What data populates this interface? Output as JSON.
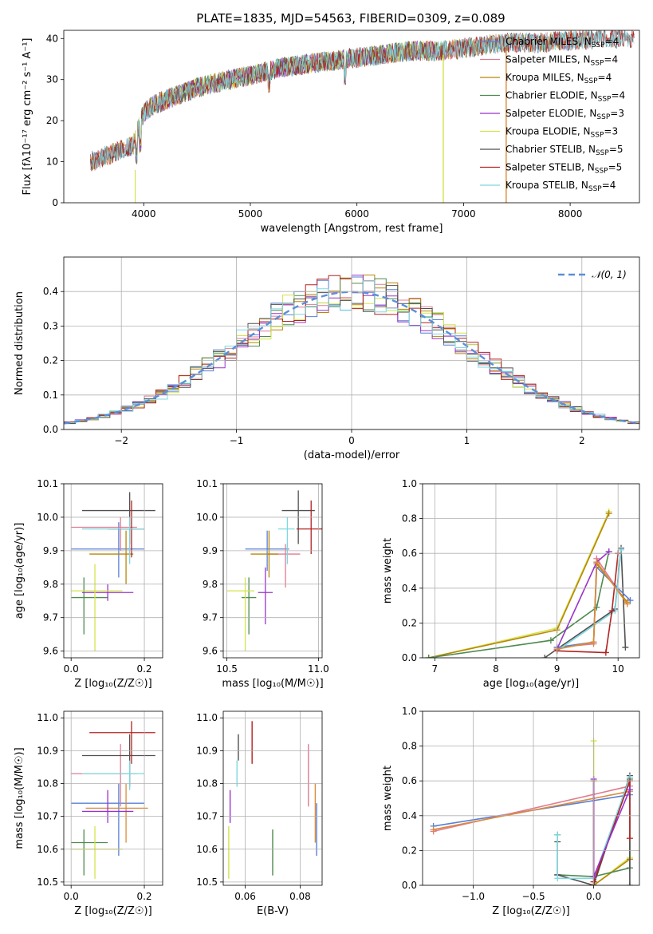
{
  "figure_title": "PLATE=1835, MJD=54563, FIBERID=0309, z=0.089",
  "chart_data": [
    {
      "id": "spectrum",
      "type": "line",
      "title": "PLATE=1835, MJD=54563, FIBERID=0309, z=0.089",
      "xlabel": "wavelength [Angstrom, rest frame]",
      "ylabel": "Flux [fλ10⁻¹⁷ erg cm⁻² s⁻¹ A⁻¹]",
      "xlim": [
        3250,
        8650
      ],
      "ylim": [
        0,
        42
      ],
      "xticks": [
        4000,
        5000,
        6000,
        7000,
        8000
      ],
      "yticks": [
        0,
        10,
        20,
        30,
        40
      ],
      "grid": false,
      "legend_loc": "top-right",
      "continuum": {
        "x": [
          3500,
          3700,
          3800,
          3900,
          3950,
          4000,
          4100,
          4300,
          4500,
          4800,
          5000,
          5300,
          5600,
          5900,
          6200,
          6500,
          6800,
          7100,
          7400,
          7700,
          8000,
          8300,
          8600
        ],
        "y": [
          10,
          12,
          13,
          14,
          18,
          22,
          24,
          26,
          28,
          30,
          31,
          33,
          34,
          35,
          36,
          37,
          37,
          38,
          39,
          39,
          39.5,
          40,
          40
        ]
      },
      "series": [
        {
          "name": "Chabrier MILES, N_SSP=4",
          "color": "#5a7fd6",
          "range": [
            3500,
            8150
          ]
        },
        {
          "name": "Salpeter MILES, N_SSP=4",
          "color": "#e07b91",
          "range": [
            3500,
            8150
          ]
        },
        {
          "name": "Kroupa MILES, N_SSP=4",
          "color": "#b8860b",
          "range": [
            3500,
            8150
          ]
        },
        {
          "name": "Chabrier ELODIE, N_SSP=4",
          "color": "#4f8a4f",
          "range": [
            3920,
            6800
          ]
        },
        {
          "name": "Salpeter ELODIE, N_SSP=3",
          "color": "#9932cc",
          "range": [
            3920,
            6800
          ]
        },
        {
          "name": "Kroupa ELODIE, N_SSP=3",
          "color": "#d4e34a",
          "range": [
            3920,
            6800
          ]
        },
        {
          "name": "Chabrier STELIB, N_SSP=5",
          "color": "#505050",
          "range": [
            3500,
            8600
          ]
        },
        {
          "name": "Salpeter STELIB, N_SSP=5",
          "color": "#b22222",
          "range": [
            3500,
            8600
          ]
        },
        {
          "name": "Kroupa STELIB, N_SSP=4",
          "color": "#7fd8e0",
          "range": [
            3500,
            8600
          ]
        }
      ],
      "legend": [
        {
          "model": "Chabrier MILES",
          "n": "4",
          "color": "#5a7fd6"
        },
        {
          "model": "Salpeter MILES",
          "n": "4",
          "color": "#e07b91"
        },
        {
          "model": "Kroupa MILES",
          "n": "4",
          "color": "#b8860b"
        },
        {
          "model": "Chabrier ELODIE",
          "n": "4",
          "color": "#4f8a4f"
        },
        {
          "model": "Salpeter ELODIE",
          "n": "3",
          "color": "#9932cc"
        },
        {
          "model": "Kroupa ELODIE",
          "n": "3",
          "color": "#d4e34a"
        },
        {
          "model": "Chabrier STELIB",
          "n": "5",
          "color": "#505050"
        },
        {
          "model": "Salpeter STELIB",
          "n": "5",
          "color": "#b22222"
        },
        {
          "model": "Kroupa STELIB",
          "n": "4",
          "color": "#7fd8e0"
        }
      ]
    },
    {
      "id": "residuals",
      "type": "line",
      "xlabel": "(data-model)/error",
      "ylabel": "Normed distribution",
      "xlim": [
        -2.5,
        2.5
      ],
      "ylim": [
        0,
        0.5
      ],
      "xticks": [
        -2,
        -1,
        0,
        1,
        2
      ],
      "xtick_labels": [
        "−2",
        "−1",
        "0",
        "1",
        "2"
      ],
      "yticks": [
        0.0,
        0.1,
        0.2,
        0.3,
        0.4
      ],
      "ytick_labels": [
        "0.0",
        "0.1",
        "0.2",
        "0.3",
        "0.4"
      ],
      "grid": true,
      "legend_loc": "top-right",
      "gaussian_label": "𝒩(0, 1)",
      "gaussian_color": "#5b8fd9",
      "bin_width": 0.1,
      "hist_colors": [
        "#5a7fd6",
        "#e07b91",
        "#b8860b",
        "#4f8a4f",
        "#9932cc",
        "#d4e34a",
        "#505050",
        "#b22222",
        "#7fd8e0"
      ]
    },
    {
      "id": "age-vs-z",
      "type": "scatter",
      "xlabel": "Z [log₁₀(Z/Z☉)]",
      "ylabel": "age  [log₁₀(age/yr)]",
      "xlim": [
        -0.02,
        0.25
      ],
      "ylim": [
        9.58,
        10.1
      ],
      "xticks": [
        0.0,
        0.2
      ],
      "xtick_labels": [
        "0.0",
        "0.2"
      ],
      "yticks": [
        9.6,
        9.7,
        9.8,
        9.9,
        10.0,
        10.1
      ],
      "ytick_labels": [
        "9.6",
        "9.7",
        "9.8",
        "9.9",
        "10.0",
        "10.1"
      ],
      "grid": true,
      "points": [
        {
          "color": "#5a7fd6",
          "x": 0.13,
          "xlo": 0.0,
          "xhi": 0.2,
          "y": 9.905,
          "ylo": 9.82,
          "yhi": 9.985
        },
        {
          "color": "#e07b91",
          "x": 0.135,
          "xlo": 0.0,
          "xhi": 0.18,
          "y": 9.97,
          "ylo": 9.9,
          "yhi": 10.0
        },
        {
          "color": "#b8860b",
          "x": 0.15,
          "xlo": 0.05,
          "xhi": 0.17,
          "y": 9.89,
          "ylo": 9.8,
          "yhi": 9.96
        },
        {
          "color": "#4f8a4f",
          "x": 0.035,
          "xlo": 0.0,
          "xhi": 0.1,
          "y": 9.76,
          "ylo": 9.65,
          "yhi": 9.82
        },
        {
          "color": "#9932cc",
          "x": 0.1,
          "xlo": 0.03,
          "xhi": 0.17,
          "y": 9.775,
          "ylo": 9.75,
          "yhi": 9.8
        },
        {
          "color": "#d4e34a",
          "x": 0.065,
          "xlo": 0.0,
          "xhi": 0.14,
          "y": 9.78,
          "ylo": 9.6,
          "yhi": 9.86
        },
        {
          "color": "#505050",
          "x": 0.16,
          "xlo": 0.03,
          "xhi": 0.23,
          "y": 10.02,
          "ylo": 9.92,
          "yhi": 10.075
        },
        {
          "color": "#b22222",
          "x": 0.165,
          "xlo": 0.1,
          "xhi": 0.2,
          "y": 9.965,
          "ylo": 9.88,
          "yhi": 10.05
        },
        {
          "color": "#7fd8e0",
          "x": 0.16,
          "xlo": 0.03,
          "xhi": 0.2,
          "y": 9.965,
          "ylo": 9.86,
          "yhi": 10.0
        }
      ]
    },
    {
      "id": "age-vs-mass",
      "type": "scatter",
      "xlabel": "mass [log₁₀(M/M☉)]",
      "ylabel": "",
      "xlim": [
        10.48,
        11.02
      ],
      "ylim": [
        9.58,
        10.1
      ],
      "xticks": [
        10.5,
        11.0
      ],
      "xtick_labels": [
        "10.5",
        "11.0"
      ],
      "yticks": [
        9.6,
        9.7,
        9.8,
        9.9,
        10.0,
        10.1
      ],
      "ytick_labels": [
        "9.6",
        "9.7",
        "9.8",
        "9.9",
        "10.0",
        "10.1"
      ],
      "grid": true,
      "points": [
        {
          "color": "#5a7fd6",
          "x": 10.72,
          "xlo": 10.6,
          "xhi": 10.84,
          "y": 9.905,
          "ylo": 9.84,
          "yhi": 9.96
        },
        {
          "color": "#e07b91",
          "x": 10.82,
          "xlo": 10.72,
          "xhi": 10.9,
          "y": 9.89,
          "ylo": 9.79,
          "yhi": 9.92
        },
        {
          "color": "#b8860b",
          "x": 10.73,
          "xlo": 10.63,
          "xhi": 10.78,
          "y": 9.89,
          "ylo": 9.82,
          "yhi": 9.96
        },
        {
          "color": "#4f8a4f",
          "x": 10.62,
          "xlo": 10.58,
          "xhi": 10.66,
          "y": 9.76,
          "ylo": 9.65,
          "yhi": 9.82
        },
        {
          "color": "#9932cc",
          "x": 10.71,
          "xlo": 10.67,
          "xhi": 10.75,
          "y": 9.775,
          "ylo": 9.68,
          "yhi": 9.85
        },
        {
          "color": "#d4e34a",
          "x": 10.6,
          "xlo": 10.5,
          "xhi": 10.65,
          "y": 9.78,
          "ylo": 9.6,
          "yhi": 9.82
        },
        {
          "color": "#505050",
          "x": 10.89,
          "xlo": 10.8,
          "xhi": 10.98,
          "y": 10.02,
          "ylo": 9.92,
          "yhi": 10.08
        },
        {
          "color": "#b22222",
          "x": 10.96,
          "xlo": 10.88,
          "xhi": 11.02,
          "y": 9.965,
          "ylo": 9.89,
          "yhi": 10.05
        },
        {
          "color": "#7fd8e0",
          "x": 10.83,
          "xlo": 10.78,
          "xhi": 10.87,
          "y": 9.965,
          "ylo": 9.86,
          "yhi": 10.0
        }
      ]
    },
    {
      "id": "massweight-vs-age",
      "type": "line",
      "xlabel": "age  [log₁₀(age/yr)]",
      "ylabel": "mass weight",
      "xlim": [
        6.8,
        10.35
      ],
      "ylim": [
        0,
        1.0
      ],
      "xticks": [
        7,
        8,
        9,
        10
      ],
      "xtick_labels": [
        "7",
        "8",
        "9",
        "10"
      ],
      "yticks": [
        0.0,
        0.2,
        0.4,
        0.6,
        0.8,
        1.0
      ],
      "ytick_labels": [
        "0.0",
        "0.2",
        "0.4",
        "0.6",
        "0.8",
        "1.0"
      ],
      "grid": true,
      "series": [
        {
          "color": "#d4e34a",
          "x": [
            6.9,
            9.0,
            9.85
          ],
          "y": [
            0.0,
            0.17,
            0.84
          ]
        },
        {
          "color": "#b8860b",
          "x": [
            6.9,
            9.0,
            9.85
          ],
          "y": [
            0.0,
            0.16,
            0.83
          ]
        },
        {
          "color": "#4f8a4f",
          "x": [
            6.9,
            8.9,
            9.65,
            9.85
          ],
          "y": [
            0.0,
            0.1,
            0.29,
            0.61
          ]
        },
        {
          "color": "#505050",
          "x": [
            8.8,
            9.0,
            9.95,
            10.05,
            10.12
          ],
          "y": [
            0.0,
            0.05,
            0.28,
            0.63,
            0.06
          ]
        },
        {
          "color": "#e07b91",
          "x": [
            9.0,
            9.6,
            9.65,
            10.15
          ],
          "y": [
            0.06,
            0.08,
            0.57,
            0.31
          ]
        },
        {
          "color": "#5a7fd6",
          "x": [
            9.0,
            9.6,
            9.65,
            10.2
          ],
          "y": [
            0.06,
            0.09,
            0.52,
            0.33
          ]
        },
        {
          "color": "#b8860b",
          "x": [
            9.0,
            9.6,
            9.65,
            10.15
          ],
          "y": [
            0.05,
            0.09,
            0.54,
            0.32
          ]
        },
        {
          "color": "#7fd8e0",
          "x": [
            9.0,
            9.95,
            10.05
          ],
          "y": [
            0.04,
            0.27,
            0.62
          ]
        },
        {
          "color": "#b22222",
          "x": [
            9.0,
            9.8,
            9.9,
            10.0
          ],
          "y": [
            0.04,
            0.03,
            0.27,
            0.6
          ]
        },
        {
          "color": "#9932cc",
          "x": [
            9.0,
            9.65,
            9.85
          ],
          "y": [
            0.05,
            0.55,
            0.61
          ]
        },
        {
          "color": "#d98c3a",
          "x": [
            9.0,
            9.6,
            9.65,
            10.15
          ],
          "y": [
            0.05,
            0.09,
            0.55,
            0.31
          ]
        }
      ]
    },
    {
      "id": "mass-vs-z",
      "type": "scatter",
      "xlabel": "Z [log₁₀(Z/Z☉)]",
      "ylabel": "mass [log₁₀(M/M☉)]",
      "xlim": [
        -0.02,
        0.25
      ],
      "ylim": [
        10.49,
        11.02
      ],
      "xticks": [
        0.0,
        0.2
      ],
      "xtick_labels": [
        "0.0",
        "0.2"
      ],
      "yticks": [
        10.5,
        10.6,
        10.7,
        10.8,
        10.9,
        11.0
      ],
      "ytick_labels": [
        "10.5",
        "10.6",
        "10.7",
        "10.8",
        "10.9",
        "11.0"
      ],
      "grid": true,
      "points": [
        {
          "color": "#5a7fd6",
          "x": 0.13,
          "xlo": 0.0,
          "xhi": 0.2,
          "y": 10.74,
          "ylo": 10.58,
          "yhi": 10.8
        },
        {
          "color": "#e07b91",
          "x": 0.135,
          "xlo": 0.0,
          "xhi": 0.18,
          "y": 10.83,
          "ylo": 10.73,
          "yhi": 10.92
        },
        {
          "color": "#d98c3a",
          "x": 0.15,
          "xlo": 0.04,
          "xhi": 0.21,
          "y": 10.725,
          "ylo": 10.62,
          "yhi": 10.8
        },
        {
          "color": "#4f8a4f",
          "x": 0.035,
          "xlo": 0.0,
          "xhi": 0.1,
          "y": 10.62,
          "ylo": 10.52,
          "yhi": 10.66
        },
        {
          "color": "#9932cc",
          "x": 0.1,
          "xlo": 0.03,
          "xhi": 0.17,
          "y": 10.715,
          "ylo": 10.68,
          "yhi": 10.78
        },
        {
          "color": "#d4e34a",
          "x": 0.065,
          "xlo": 0.0,
          "xhi": 0.14,
          "y": 10.6,
          "ylo": 10.51,
          "yhi": 10.67
        },
        {
          "color": "#505050",
          "x": 0.16,
          "xlo": 0.03,
          "xhi": 0.23,
          "y": 10.885,
          "ylo": 10.79,
          "yhi": 10.95
        },
        {
          "color": "#b22222",
          "x": 0.165,
          "xlo": 0.05,
          "xhi": 0.23,
          "y": 10.955,
          "ylo": 10.86,
          "yhi": 10.99
        },
        {
          "color": "#7fd8e0",
          "x": 0.16,
          "xlo": 0.03,
          "xhi": 0.2,
          "y": 10.83,
          "ylo": 10.78,
          "yhi": 10.87
        }
      ]
    },
    {
      "id": "ebv",
      "type": "scatter",
      "xlabel": "E(B-V)",
      "ylabel": "",
      "xlim": [
        0.052,
        0.088
      ],
      "ylim": [
        10.49,
        11.02
      ],
      "xticks": [
        0.06,
        0.08
      ],
      "xtick_labels": [
        "0.06",
        "0.08"
      ],
      "yticks": [
        10.5,
        10.6,
        10.7,
        10.8,
        10.9,
        11.0
      ],
      "ytick_labels": [
        "10.5",
        "10.6",
        "10.7",
        "10.8",
        "10.9",
        "11.0"
      ],
      "grid": true,
      "points": [
        {
          "color": "#d4e34a",
          "x": 0.054,
          "y1": 10.51,
          "y2": 10.67
        },
        {
          "color": "#9932cc",
          "x": 0.0545,
          "y1": 10.68,
          "y2": 10.78
        },
        {
          "color": "#7fd8e0",
          "x": 0.057,
          "y1": 10.79,
          "y2": 10.87
        },
        {
          "color": "#505050",
          "x": 0.0575,
          "y1": 10.87,
          "y2": 10.95
        },
        {
          "color": "#b22222",
          "x": 0.0625,
          "y1": 10.86,
          "y2": 10.99
        },
        {
          "color": "#4f8a4f",
          "x": 0.07,
          "y1": 10.52,
          "y2": 10.66
        },
        {
          "color": "#e07b91",
          "x": 0.083,
          "y1": 10.73,
          "y2": 10.92
        },
        {
          "color": "#d98c3a",
          "x": 0.0855,
          "y1": 10.62,
          "y2": 10.8
        },
        {
          "color": "#5a7fd6",
          "x": 0.086,
          "y1": 10.58,
          "y2": 10.74
        }
      ]
    },
    {
      "id": "massweight-vs-z",
      "type": "line",
      "xlabel": "Z [log₁₀(Z/Z☉)]",
      "ylabel": "mass weight",
      "xlim": [
        -1.42,
        0.38
      ],
      "ylim": [
        0,
        1.0
      ],
      "xticks": [
        -1.0,
        -0.5,
        0.0
      ],
      "xtick_labels": [
        "−1.0",
        "−0.5",
        "0.0"
      ],
      "yticks": [
        0.0,
        0.2,
        0.4,
        0.6,
        0.8,
        1.0
      ],
      "ytick_labels": [
        "0.0",
        "0.2",
        "0.4",
        "0.6",
        "0.8",
        "1.0"
      ],
      "grid": true,
      "series": [
        {
          "color": "#5a7fd6",
          "x": [
            -1.33,
            0.3
          ],
          "y": [
            0.34,
            0.52
          ]
        },
        {
          "color": "#e07b91",
          "x": [
            -1.33,
            0.3
          ],
          "y": [
            0.31,
            0.57
          ]
        },
        {
          "color": "#d98c3a",
          "x": [
            -1.33,
            0.3
          ],
          "y": [
            0.32,
            0.54
          ]
        },
        {
          "color": "#d4e34a",
          "x": [
            0.0,
            0.0,
            0.3
          ],
          "y": [
            0.83,
            0.0,
            0.16
          ]
        },
        {
          "color": "#b8860b",
          "x": [
            0.0,
            0.0,
            0.3
          ],
          "y": [
            0.6,
            0.0,
            0.15
          ]
        },
        {
          "color": "#4f8a4f",
          "x": [
            -0.3,
            -0.3,
            0.0,
            0.3,
            0.3
          ],
          "y": [
            0.29,
            0.06,
            0.05,
            0.1,
            0.61
          ]
        },
        {
          "color": "#505050",
          "x": [
            -0.3,
            -0.3,
            0.0,
            0.3,
            0.3
          ],
          "y": [
            0.25,
            0.06,
            0.0,
            0.63,
            0.0
          ]
        },
        {
          "color": "#7fd8e0",
          "x": [
            -0.3,
            -0.3,
            0.0,
            0.3,
            0.3
          ],
          "y": [
            0.29,
            0.04,
            0.04,
            0.62,
            0.27
          ]
        },
        {
          "color": "#b22222",
          "x": [
            0.0,
            0.3,
            0.3
          ],
          "y": [
            0.02,
            0.6,
            0.27
          ]
        },
        {
          "color": "#9932cc",
          "x": [
            0.0,
            0.0,
            0.3
          ],
          "y": [
            0.61,
            0.05,
            0.55
          ]
        }
      ]
    }
  ]
}
